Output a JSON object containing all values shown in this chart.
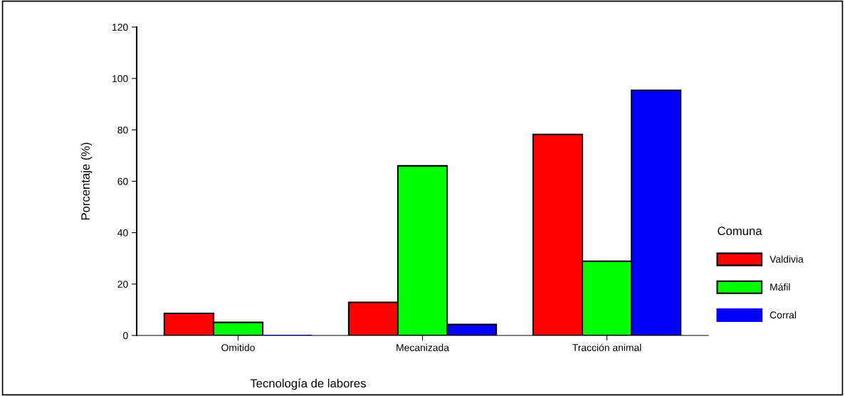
{
  "chart_data": {
    "type": "bar",
    "xlabel": "Tecnología de labores",
    "ylabel": "Porcentaje (%)",
    "legend_title": "Comuna",
    "categories": [
      "Omitido",
      "Mecanizada",
      "Tracción animal"
    ],
    "series": [
      {
        "name": "Valdivia",
        "color": "#ff0000",
        "values": [
          8.6,
          12.9,
          78.2
        ]
      },
      {
        "name": "Máfil",
        "color": "#00ff00",
        "values": [
          5.1,
          66.0,
          28.9
        ]
      },
      {
        "name": "Corral",
        "color": "#0000ff",
        "values": [
          0,
          4.3,
          95.4
        ]
      }
    ],
    "ylim": [
      0,
      120
    ],
    "yticks": [
      0,
      20,
      40,
      60,
      80,
      100,
      120
    ],
    "grid": false,
    "legend": "right"
  }
}
